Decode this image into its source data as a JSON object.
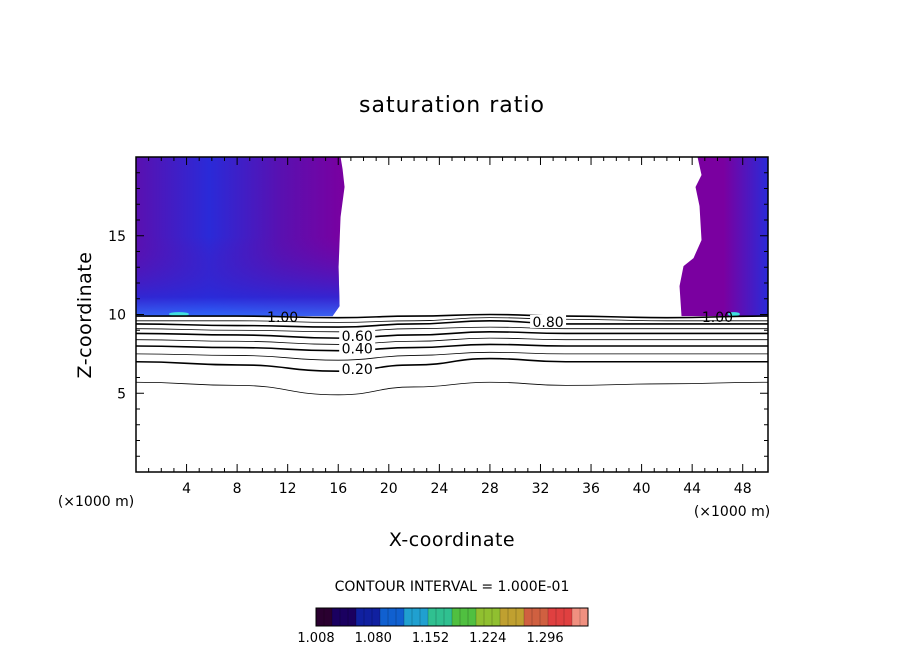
{
  "chart_data": {
    "type": "contour",
    "title": "saturation ratio",
    "xlabel": "X-coordinate",
    "ylabel": "Z-coordinate",
    "x_unit": "(×1000 m)",
    "y_unit": "",
    "xlim": [
      0,
      50
    ],
    "ylim": [
      0,
      20
    ],
    "x_ticks": [
      4,
      8,
      12,
      16,
      20,
      24,
      28,
      32,
      36,
      40,
      44,
      48
    ],
    "x_tick_labels": [
      "4",
      "8",
      "12",
      "16",
      "20",
      "24",
      "28",
      "32",
      "36",
      "40",
      "44",
      "48"
    ],
    "y_ticks": [
      5,
      10,
      15
    ],
    "y_tick_labels": [
      "5",
      "10",
      "15"
    ],
    "contour_interval_text": "CONTOUR INTERVAL = 1.000E-01",
    "contour_labels": [
      {
        "text": "1.00",
        "x": 11.6,
        "y": 9.7
      },
      {
        "text": "0.80",
        "x": 32.6,
        "y": 9.4
      },
      {
        "text": "0.60",
        "x": 17.5,
        "y": 8.5
      },
      {
        "text": "0.40",
        "x": 17.5,
        "y": 7.7
      },
      {
        "text": "0.20",
        "x": 17.5,
        "y": 6.4
      },
      {
        "text": "1.00",
        "x": 46.0,
        "y": 9.7
      }
    ],
    "contour_lines": [
      {
        "level": 0.1,
        "z_at_x": [
          [
            0,
            5.7
          ],
          [
            8,
            5.5
          ],
          [
            16,
            4.9
          ],
          [
            22,
            5.4
          ],
          [
            28,
            5.7
          ],
          [
            34,
            5.5
          ],
          [
            42,
            5.6
          ],
          [
            50,
            5.7
          ]
        ]
      },
      {
        "level": 0.2,
        "z_at_x": [
          [
            0,
            7.0
          ],
          [
            8,
            6.8
          ],
          [
            16,
            6.4
          ],
          [
            22,
            6.8
          ],
          [
            28,
            7.2
          ],
          [
            34,
            7.0
          ],
          [
            42,
            7.0
          ],
          [
            50,
            7.0
          ]
        ]
      },
      {
        "level": 0.3,
        "z_at_x": [
          [
            0,
            7.5
          ],
          [
            8,
            7.4
          ],
          [
            16,
            7.1
          ],
          [
            22,
            7.4
          ],
          [
            28,
            7.6
          ],
          [
            34,
            7.5
          ],
          [
            42,
            7.5
          ],
          [
            50,
            7.5
          ]
        ]
      },
      {
        "level": 0.4,
        "z_at_x": [
          [
            0,
            8.0
          ],
          [
            8,
            7.9
          ],
          [
            16,
            7.7
          ],
          [
            22,
            7.9
          ],
          [
            28,
            8.1
          ],
          [
            34,
            8.0
          ],
          [
            42,
            8.0
          ],
          [
            50,
            8.0
          ]
        ]
      },
      {
        "level": 0.5,
        "z_at_x": [
          [
            0,
            8.4
          ],
          [
            8,
            8.3
          ],
          [
            16,
            8.1
          ],
          [
            22,
            8.3
          ],
          [
            28,
            8.5
          ],
          [
            34,
            8.4
          ],
          [
            42,
            8.4
          ],
          [
            50,
            8.4
          ]
        ]
      },
      {
        "level": 0.6,
        "z_at_x": [
          [
            0,
            8.8
          ],
          [
            8,
            8.7
          ],
          [
            16,
            8.5
          ],
          [
            22,
            8.7
          ],
          [
            28,
            8.9
          ],
          [
            34,
            8.8
          ],
          [
            42,
            8.8
          ],
          [
            50,
            8.8
          ]
        ]
      },
      {
        "level": 0.7,
        "z_at_x": [
          [
            0,
            9.1
          ],
          [
            8,
            9.0
          ],
          [
            16,
            8.9
          ],
          [
            22,
            9.1
          ],
          [
            28,
            9.2
          ],
          [
            34,
            9.1
          ],
          [
            42,
            9.1
          ],
          [
            50,
            9.1
          ]
        ]
      },
      {
        "level": 0.8,
        "z_at_x": [
          [
            0,
            9.4
          ],
          [
            8,
            9.3
          ],
          [
            16,
            9.2
          ],
          [
            22,
            9.4
          ],
          [
            28,
            9.6
          ],
          [
            34,
            9.4
          ],
          [
            42,
            9.4
          ],
          [
            50,
            9.4
          ]
        ]
      },
      {
        "level": 0.9,
        "z_at_x": [
          [
            0,
            9.6
          ],
          [
            8,
            9.6
          ],
          [
            16,
            9.5
          ],
          [
            22,
            9.6
          ],
          [
            28,
            9.8
          ],
          [
            34,
            9.7
          ],
          [
            42,
            9.6
          ],
          [
            50,
            9.6
          ]
        ]
      },
      {
        "level": 1.0,
        "z_at_x": [
          [
            0,
            9.9
          ],
          [
            8,
            9.9
          ],
          [
            16,
            9.8
          ],
          [
            22,
            9.9
          ],
          [
            28,
            10.0
          ],
          [
            34,
            9.9
          ],
          [
            42,
            9.8
          ],
          [
            50,
            9.9
          ]
        ]
      }
    ],
    "supersaturated_regions": [
      {
        "name": "left",
        "x_range": [
          0,
          16.5
        ],
        "z_range": [
          9.9,
          20
        ]
      },
      {
        "name": "right",
        "x_range": [
          43,
          50
        ],
        "z_range": [
          9.9,
          20
        ]
      }
    ],
    "colorbar": {
      "min": 1.008,
      "max": 1.35,
      "tick_values": [
        1.008,
        1.08,
        1.152,
        1.224,
        1.296
      ],
      "tick_labels": [
        "1.008",
        "1.080",
        "1.152",
        "1.224",
        "1.296"
      ],
      "colors": [
        "#2a0030",
        "#1a0060",
        "#1020a0",
        "#1060d0",
        "#20a0d0",
        "#30c090",
        "#50c040",
        "#90c030",
        "#c0a030",
        "#d06040",
        "#e04040",
        "#f09080"
      ]
    },
    "fill_colors": {
      "low": "#7a00a0",
      "mid": "#5a10b0",
      "high": "#2a2ad8",
      "peak": "#3070ff",
      "max": "#40e0e0"
    }
  }
}
